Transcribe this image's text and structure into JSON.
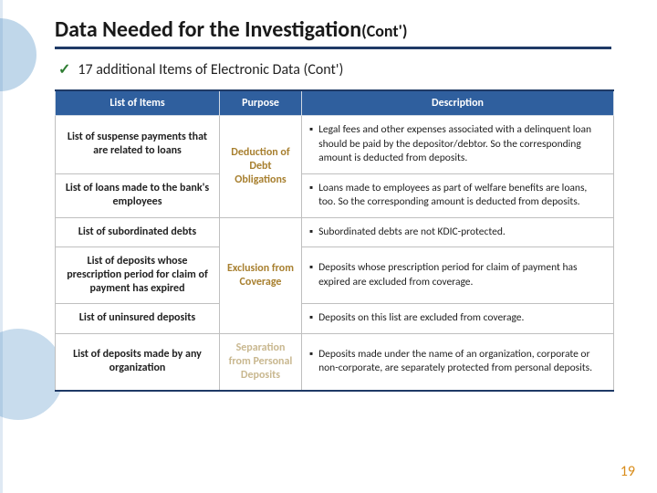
{
  "title": {
    "main": "Data Needed for the Investigation",
    "suffix": "(Cont')"
  },
  "subtitle": "17 additional Items of Electronic Data (Cont')",
  "headers": {
    "c1": "List of Items",
    "c2": "Purpose",
    "c3": "Description"
  },
  "purpose": {
    "deduction": "Deduction of Debt Obligations",
    "exclusion": "Exclusion from Coverage",
    "separation": "Separation from Personal Deposits"
  },
  "rows": {
    "r1": {
      "item": "List of suspense payments that are related to loans",
      "desc": "Legal fees and other expenses associated with a delinquent loan should be paid by the depositor/debtor. So the corresponding amount is deducted from deposits."
    },
    "r2": {
      "item": "List of loans made to the bank's employees",
      "desc": "Loans made to employees as part of welfare benefits are loans, too. So the corresponding amount is deducted from deposits."
    },
    "r3": {
      "item": "List of subordinated debts",
      "desc": "Subordinated debts are not KDIC-protected."
    },
    "r4": {
      "item": "List of deposits whose prescription period for claim of payment has expired",
      "desc": "Deposits whose prescription period for claim of payment has expired are excluded from coverage."
    },
    "r5": {
      "item": "List of uninsured deposits",
      "desc": "Deposits on this list are excluded from coverage."
    },
    "r6": {
      "item": "List of deposits made by any organization",
      "desc": "Deposits made under the name of an organization, corporate or non-corporate, are separately protected from personal deposits."
    }
  },
  "page_number": "19",
  "colwidths": {
    "c1": "180",
    "c2": "90",
    "c3": "342"
  }
}
